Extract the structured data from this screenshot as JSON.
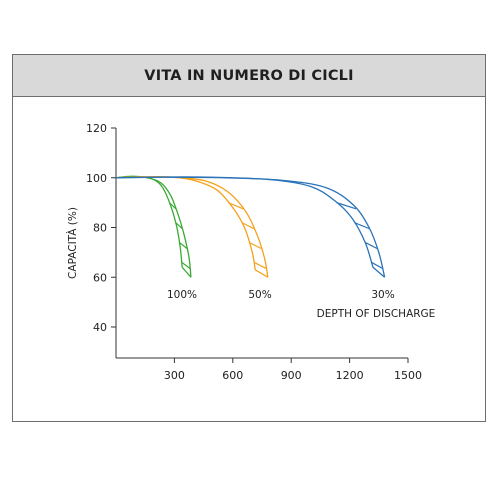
{
  "chart_data": {
    "type": "line",
    "title": "VITA IN NUMERO DI CICLI",
    "ylabel": "CAPACITÀ (%)",
    "xlabel": "",
    "ylim": [
      30,
      120
    ],
    "xlim": [
      0,
      1500
    ],
    "yticks": [
      "120",
      "100",
      "80",
      "60",
      "40"
    ],
    "xticks": [
      "300",
      "600",
      "900",
      "1200",
      "1500"
    ],
    "ytick_values": [
      120,
      100,
      80,
      60,
      40
    ],
    "xtick_values": [
      300,
      600,
      900,
      1200,
      1500
    ],
    "grid": false,
    "legend": "none",
    "annotation": "DEPTH OF DISCHARGE",
    "series": [
      {
        "name": "100%",
        "color": "#3aaa35",
        "upper": [
          [
            0,
            100
          ],
          [
            80,
            100.6
          ],
          [
            150,
            100.2
          ],
          [
            200,
            99
          ],
          [
            240,
            96
          ],
          [
            280,
            89
          ],
          [
            310,
            81
          ],
          [
            330,
            72
          ],
          [
            340,
            64
          ]
        ],
        "lower": [
          [
            0,
            100
          ],
          [
            80,
            100.4
          ],
          [
            160,
            100
          ],
          [
            230,
            98
          ],
          [
            280,
            93
          ],
          [
            320,
            85
          ],
          [
            350,
            77
          ],
          [
            375,
            68
          ],
          [
            385,
            60
          ]
        ]
      },
      {
        "name": "50%",
        "color": "#f4a11b",
        "upper": [
          [
            0,
            100
          ],
          [
            150,
            100.4
          ],
          [
            300,
            100.2
          ],
          [
            420,
            98.5
          ],
          [
            520,
            95
          ],
          [
            600,
            88
          ],
          [
            660,
            80
          ],
          [
            700,
            70
          ],
          [
            715,
            63
          ]
        ],
        "lower": [
          [
            0,
            100
          ],
          [
            150,
            100.3
          ],
          [
            330,
            100
          ],
          [
            470,
            98.5
          ],
          [
            580,
            94
          ],
          [
            670,
            86
          ],
          [
            730,
            76
          ],
          [
            765,
            67
          ],
          [
            780,
            60
          ]
        ]
      },
      {
        "name": "30%",
        "color": "#2a73b8",
        "upper": [
          [
            0,
            100
          ],
          [
            250,
            100.3
          ],
          [
            500,
            100.2
          ],
          [
            800,
            99.2
          ],
          [
            1000,
            96.5
          ],
          [
            1120,
            91
          ],
          [
            1210,
            84
          ],
          [
            1280,
            74
          ],
          [
            1320,
            64
          ]
        ],
        "lower": [
          [
            0,
            100
          ],
          [
            250,
            100.2
          ],
          [
            550,
            100
          ],
          [
            850,
            99
          ],
          [
            1080,
            96
          ],
          [
            1220,
            89
          ],
          [
            1300,
            80
          ],
          [
            1350,
            70
          ],
          [
            1380,
            60
          ]
        ]
      }
    ]
  }
}
